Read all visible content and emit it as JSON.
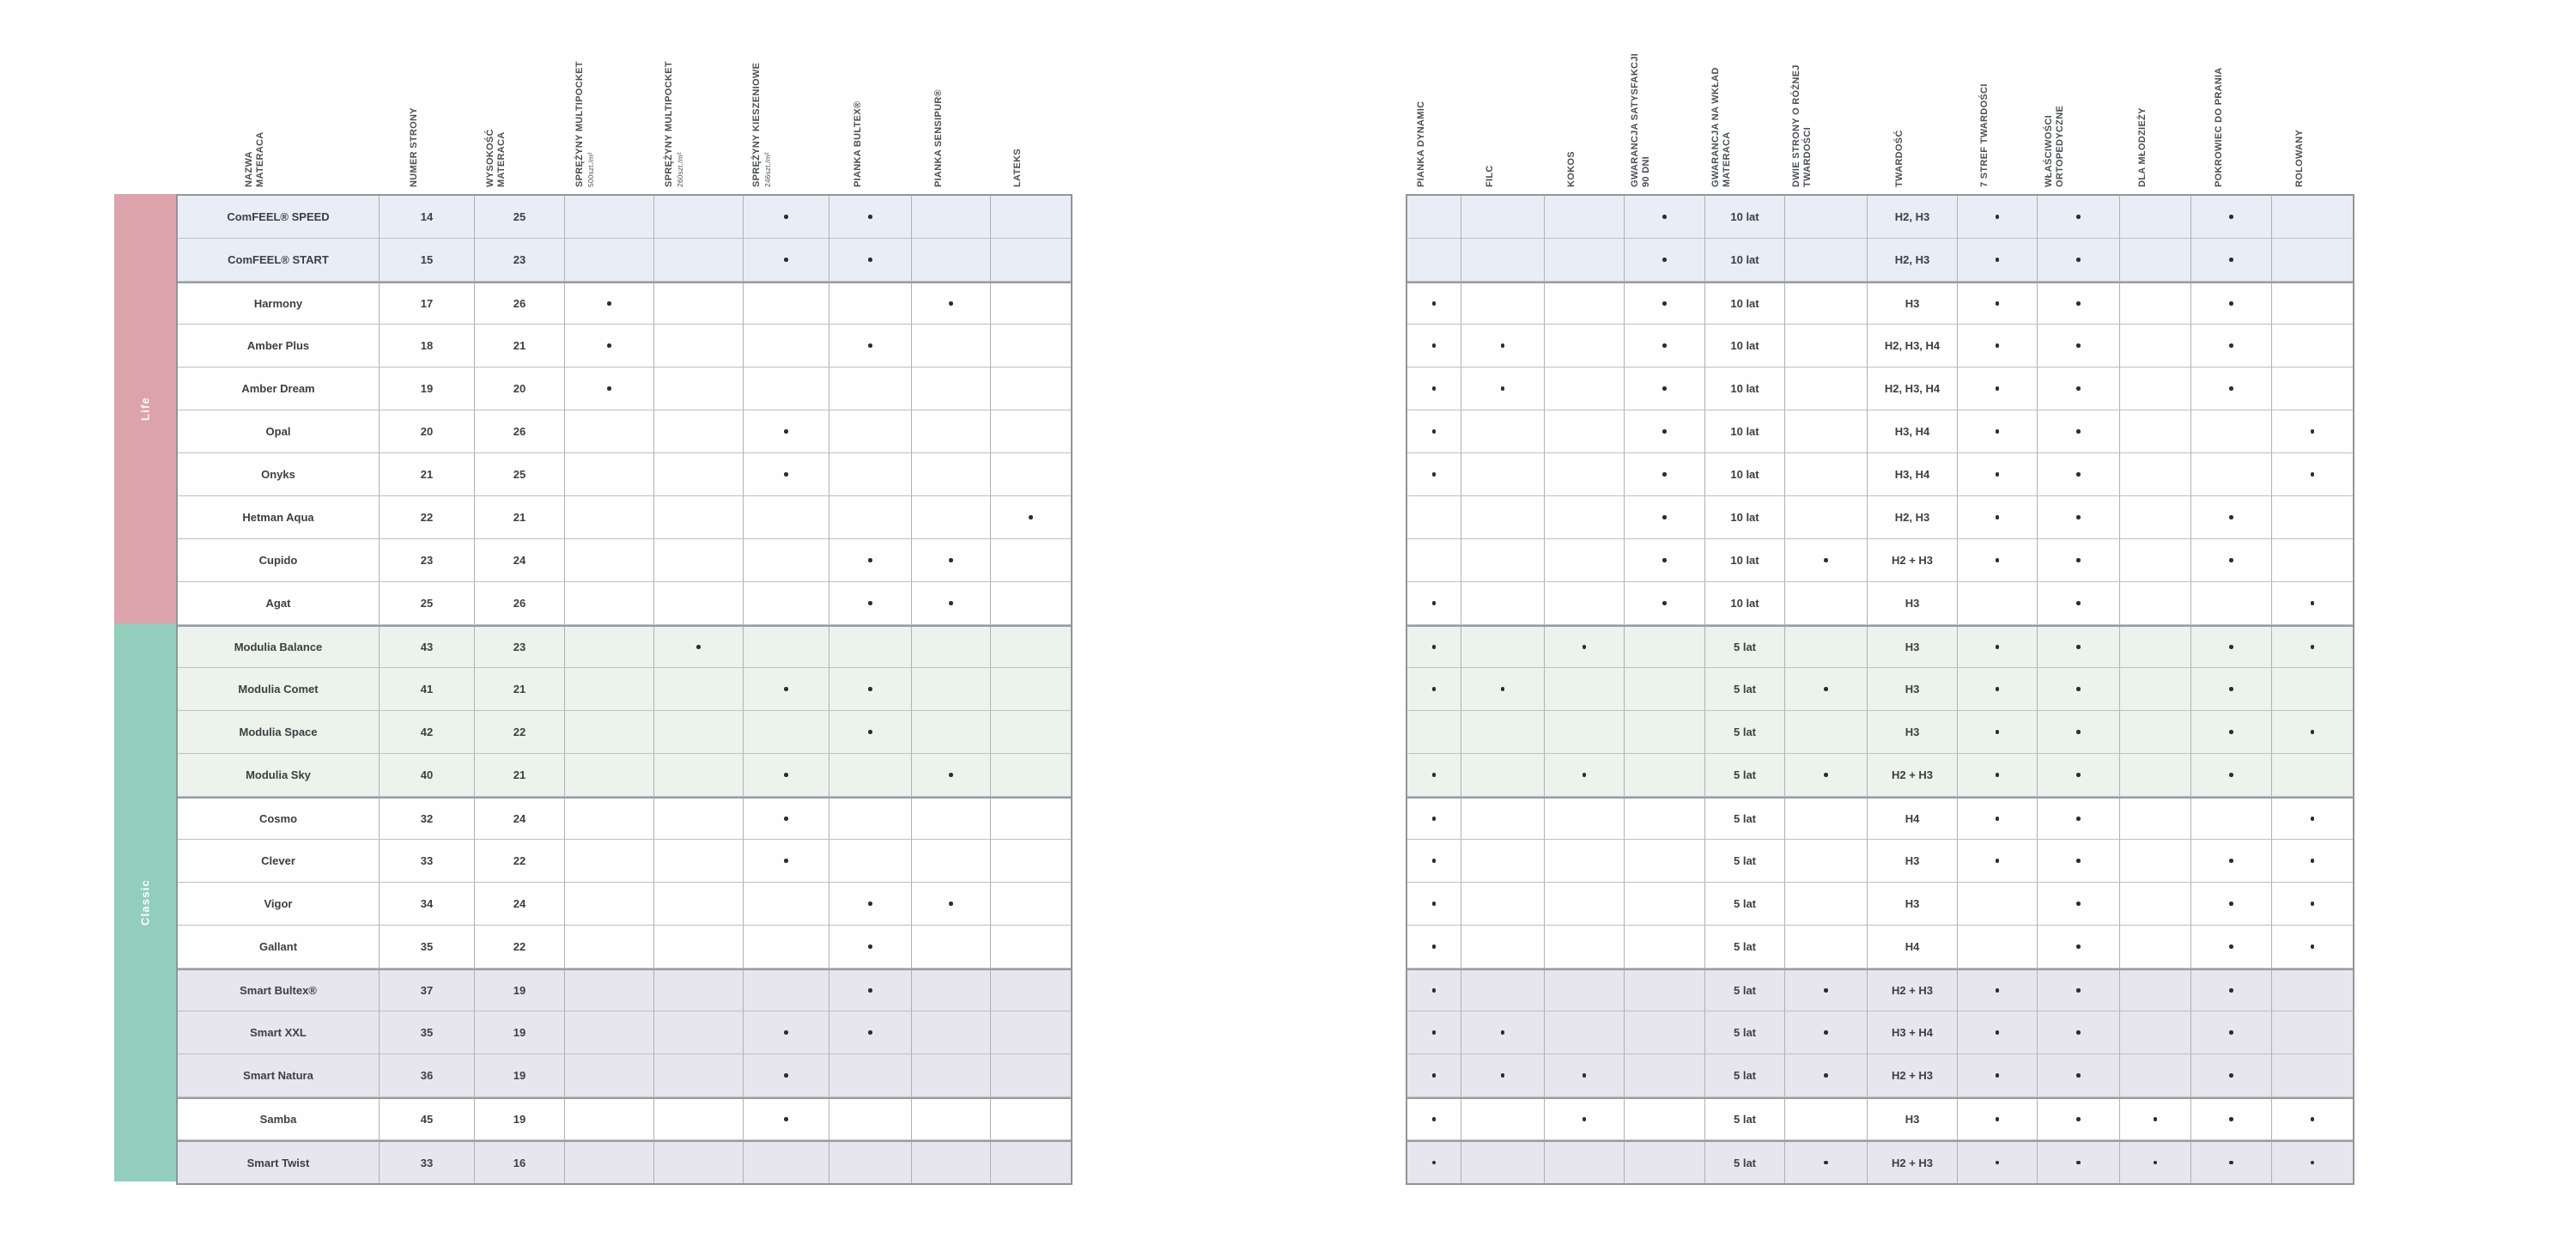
{
  "page": {
    "background": "#ffffff"
  },
  "colors": {
    "group_life": "#dda3ad",
    "group_classic": "#93cdbb",
    "tint_blue": "#e9edf6",
    "tint_green": "#ecf2ec",
    "tint_gray": "#e7e5ed",
    "grid_line": "#adb2b7",
    "dot": "#2b2e31",
    "header_text": "#4a5055"
  },
  "groups": [
    {
      "label": "Life",
      "color": "#dda3ad",
      "row_span": 10
    },
    {
      "label": "Classic",
      "color": "#93cdbb",
      "row_span": 13
    }
  ],
  "row_tints": [
    "blue",
    "blue",
    "white",
    "white",
    "white",
    "white",
    "white",
    "white",
    "white",
    "white",
    "green",
    "green",
    "green",
    "green",
    "white",
    "white",
    "white",
    "white",
    "gray",
    "gray",
    "gray",
    "white",
    "gray"
  ],
  "separator_rows": [
    3,
    11,
    15,
    19,
    22,
    23
  ],
  "left_table": {
    "columns": [
      {
        "key": "nazwa-materaca",
        "lines": [
          {
            "t": "NAZWA"
          },
          {
            "t": "MATERACA"
          }
        ]
      },
      {
        "key": "numer-strony",
        "lines": [
          {
            "t": "NUMER STRONY"
          }
        ]
      },
      {
        "key": "wysokosc-materaca",
        "lines": [
          {
            "t": "WYSOKOŚĆ"
          },
          {
            "t": "MATERACA"
          }
        ]
      },
      {
        "key": "sprezyny-multipocket-500",
        "lines": [
          {
            "t": "SPRĘŻYNY MULTIPOCKET"
          },
          {
            "t": "500szt./m²",
            "small": true
          }
        ]
      },
      {
        "key": "sprezyny-multipocket-260",
        "lines": [
          {
            "t": "SPRĘŻYNY MULTIPOCKET"
          },
          {
            "t": "260szt./m²",
            "small": true
          }
        ]
      },
      {
        "key": "sprezyny-kieszeniowe-246",
        "lines": [
          {
            "t": "SPRĘŻYNY KIESZENIOWE"
          },
          {
            "t": "246szt./m²",
            "small": true
          }
        ]
      },
      {
        "key": "pianka-bultex",
        "lines": [
          {
            "t": "PIANKA BULTEX®"
          }
        ]
      },
      {
        "key": "pianka-sensipur",
        "lines": [
          {
            "t": "PIANKA SENSIPUR®"
          }
        ]
      },
      {
        "key": "lateks",
        "lines": [
          {
            "t": "LATEKS"
          }
        ]
      }
    ],
    "rows": [
      {
        "cells": [
          "ComFEEL® SPEED",
          "14",
          "25",
          false,
          false,
          true,
          true,
          false,
          false
        ]
      },
      {
        "cells": [
          "ComFEEL® START",
          "15",
          "23",
          false,
          false,
          true,
          true,
          false,
          false
        ]
      },
      {
        "cells": [
          "Harmony",
          "17",
          "26",
          true,
          false,
          false,
          false,
          true,
          false
        ]
      },
      {
        "cells": [
          "Amber Plus",
          "18",
          "21",
          true,
          false,
          false,
          true,
          false,
          false
        ]
      },
      {
        "cells": [
          "Amber Dream",
          "19",
          "20",
          true,
          false,
          false,
          false,
          false,
          false
        ]
      },
      {
        "cells": [
          "Opal",
          "20",
          "26",
          false,
          false,
          true,
          false,
          false,
          false
        ]
      },
      {
        "cells": [
          "Onyks",
          "21",
          "25",
          false,
          false,
          true,
          false,
          false,
          false
        ]
      },
      {
        "cells": [
          "Hetman Aqua",
          "22",
          "21",
          false,
          false,
          false,
          false,
          false,
          true
        ]
      },
      {
        "cells": [
          "Cupido",
          "23",
          "24",
          false,
          false,
          false,
          true,
          true,
          false
        ]
      },
      {
        "cells": [
          "Agat",
          "25",
          "26",
          false,
          false,
          false,
          true,
          true,
          false
        ]
      },
      {
        "cells": [
          "Modulia Balance",
          "43",
          "23",
          false,
          true,
          false,
          false,
          false,
          false
        ]
      },
      {
        "cells": [
          "Modulia Comet",
          "41",
          "21",
          false,
          false,
          true,
          true,
          false,
          false
        ]
      },
      {
        "cells": [
          "Modulia Space",
          "42",
          "22",
          false,
          false,
          false,
          true,
          false,
          false
        ]
      },
      {
        "cells": [
          "Modulia Sky",
          "40",
          "21",
          false,
          false,
          true,
          false,
          true,
          false
        ]
      },
      {
        "cells": [
          "Cosmo",
          "32",
          "24",
          false,
          false,
          true,
          false,
          false,
          false
        ]
      },
      {
        "cells": [
          "Clever",
          "33",
          "22",
          false,
          false,
          true,
          false,
          false,
          false
        ]
      },
      {
        "cells": [
          "Vigor",
          "34",
          "24",
          false,
          false,
          false,
          true,
          true,
          false
        ]
      },
      {
        "cells": [
          "Gallant",
          "35",
          "22",
          false,
          false,
          false,
          true,
          false,
          false
        ]
      },
      {
        "cells": [
          "Smart Bultex®",
          "37",
          "19",
          false,
          false,
          false,
          true,
          false,
          false
        ]
      },
      {
        "cells": [
          "Smart XXL",
          "35",
          "19",
          false,
          false,
          true,
          true,
          false,
          false
        ]
      },
      {
        "cells": [
          "Smart Natura",
          "36",
          "19",
          false,
          false,
          true,
          false,
          false,
          false
        ]
      },
      {
        "cells": [
          "Samba",
          "45",
          "19",
          false,
          false,
          true,
          false,
          false,
          false
        ]
      },
      {
        "cells": [
          "Smart Twist",
          "33",
          "16",
          false,
          false,
          false,
          false,
          false,
          false
        ]
      }
    ]
  },
  "right_table": {
    "columns": [
      {
        "key": "pianka-dynamic",
        "lines": [
          {
            "t": "PIANKA DYNAMIC"
          }
        ]
      },
      {
        "key": "filc",
        "lines": [
          {
            "t": "FILC"
          }
        ]
      },
      {
        "key": "kokos",
        "lines": [
          {
            "t": "KOKOS"
          }
        ]
      },
      {
        "key": "gwarancja-satysfakcji",
        "lines": [
          {
            "t": "GWARANCJA SATYSFAKCJI"
          },
          {
            "t": "90 DNI"
          }
        ]
      },
      {
        "key": "gwarancja-na-wklad",
        "lines": [
          {
            "t": "GWARANCJA NA WKŁAD"
          },
          {
            "t": "MATERACA"
          }
        ]
      },
      {
        "key": "dwie-strony",
        "lines": [
          {
            "t": "DWIE STRONY O RÓŻNEJ"
          },
          {
            "t": "TWARDOŚCI"
          }
        ]
      },
      {
        "key": "twardosc",
        "lines": [
          {
            "t": "TWARDOŚĆ"
          }
        ]
      },
      {
        "key": "7-stref-twardosci",
        "lines": [
          {
            "t": "7 STREF TWARDOŚCI"
          }
        ]
      },
      {
        "key": "wlasciwosci-ortopedyczne",
        "lines": [
          {
            "t": "WŁAŚCIWOŚCI"
          },
          {
            "t": "ORTOPEDYCZNE"
          }
        ]
      },
      {
        "key": "dla-mlodziezy",
        "lines": [
          {
            "t": "DLA MŁODZIEŻY"
          }
        ]
      },
      {
        "key": "pokrowiec-do-prania",
        "lines": [
          {
            "t": "POKROWIEC DO PRANIA"
          }
        ]
      },
      {
        "key": "rolowany",
        "lines": [
          {
            "t": "ROLOWANY"
          }
        ]
      }
    ],
    "rows": [
      {
        "cells": [
          false,
          false,
          false,
          true,
          "10 lat",
          false,
          "H2, H3",
          true,
          true,
          false,
          true,
          false
        ]
      },
      {
        "cells": [
          false,
          false,
          false,
          true,
          "10 lat",
          false,
          "H2, H3",
          true,
          true,
          false,
          true,
          false
        ]
      },
      {
        "cells": [
          true,
          false,
          false,
          true,
          "10 lat",
          false,
          "H3",
          true,
          true,
          false,
          true,
          false
        ]
      },
      {
        "cells": [
          true,
          true,
          false,
          true,
          "10 lat",
          false,
          "H2, H3, H4",
          true,
          true,
          false,
          true,
          false
        ]
      },
      {
        "cells": [
          true,
          true,
          false,
          true,
          "10 lat",
          false,
          "H2, H3, H4",
          true,
          true,
          false,
          true,
          false
        ]
      },
      {
        "cells": [
          true,
          false,
          false,
          true,
          "10 lat",
          false,
          "H3, H4",
          true,
          true,
          false,
          false,
          true
        ]
      },
      {
        "cells": [
          true,
          false,
          false,
          true,
          "10 lat",
          false,
          "H3, H4",
          true,
          true,
          false,
          false,
          true
        ]
      },
      {
        "cells": [
          false,
          false,
          false,
          true,
          "10 lat",
          false,
          "H2, H3",
          true,
          true,
          false,
          true,
          false
        ]
      },
      {
        "cells": [
          false,
          false,
          false,
          true,
          "10 lat",
          true,
          "H2 + H3",
          true,
          true,
          false,
          true,
          false
        ]
      },
      {
        "cells": [
          true,
          false,
          false,
          true,
          "10 lat",
          false,
          "H3",
          false,
          true,
          false,
          false,
          true
        ]
      },
      {
        "cells": [
          true,
          false,
          true,
          false,
          "5 lat",
          false,
          "H3",
          true,
          true,
          false,
          true,
          true
        ]
      },
      {
        "cells": [
          true,
          true,
          false,
          false,
          "5 lat",
          true,
          "H3",
          true,
          true,
          false,
          true,
          false
        ]
      },
      {
        "cells": [
          false,
          false,
          false,
          false,
          "5 lat",
          false,
          "H3",
          true,
          true,
          false,
          true,
          true
        ]
      },
      {
        "cells": [
          true,
          false,
          true,
          false,
          "5 lat",
          true,
          "H2 + H3",
          true,
          true,
          false,
          true,
          false
        ]
      },
      {
        "cells": [
          true,
          false,
          false,
          false,
          "5 lat",
          false,
          "H4",
          true,
          true,
          false,
          false,
          true
        ]
      },
      {
        "cells": [
          true,
          false,
          false,
          false,
          "5 lat",
          false,
          "H3",
          true,
          true,
          false,
          true,
          true
        ]
      },
      {
        "cells": [
          true,
          false,
          false,
          false,
          "5 lat",
          false,
          "H3",
          false,
          true,
          false,
          true,
          true
        ]
      },
      {
        "cells": [
          true,
          false,
          false,
          false,
          "5 lat",
          false,
          "H4",
          false,
          true,
          false,
          true,
          true
        ]
      },
      {
        "cells": [
          true,
          false,
          false,
          false,
          "5 lat",
          true,
          "H2 + H3",
          true,
          true,
          false,
          true,
          false
        ]
      },
      {
        "cells": [
          true,
          true,
          false,
          false,
          "5 lat",
          true,
          "H3 + H4",
          true,
          true,
          false,
          true,
          false
        ]
      },
      {
        "cells": [
          true,
          true,
          true,
          false,
          "5 lat",
          true,
          "H2 + H3",
          true,
          true,
          false,
          true,
          false
        ]
      },
      {
        "cells": [
          true,
          false,
          true,
          false,
          "5 lat",
          false,
          "H3",
          true,
          true,
          true,
          true,
          true
        ]
      },
      {
        "cells": [
          true,
          false,
          false,
          false,
          "5 lat",
          true,
          "H2 + H3",
          true,
          true,
          true,
          true,
          true
        ]
      }
    ]
  }
}
